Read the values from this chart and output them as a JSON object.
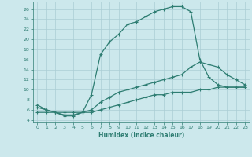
{
  "xlabel": "Humidex (Indice chaleur)",
  "bg_color": "#cce8ec",
  "grid_color": "#aacdd4",
  "line_color": "#2e7d72",
  "xlim": [
    -0.5,
    23.5
  ],
  "ylim": [
    3.5,
    27.5
  ],
  "xticks": [
    0,
    1,
    2,
    3,
    4,
    5,
    6,
    7,
    8,
    9,
    10,
    11,
    12,
    13,
    14,
    15,
    16,
    17,
    18,
    19,
    20,
    21,
    22,
    23
  ],
  "yticks": [
    4,
    6,
    8,
    10,
    12,
    14,
    16,
    18,
    20,
    22,
    24,
    26
  ],
  "line1_x": [
    0,
    1,
    2,
    3,
    4,
    5,
    6,
    7,
    8,
    9,
    10,
    11,
    12,
    13,
    14,
    15,
    16,
    17,
    18,
    19,
    20,
    21,
    22,
    23
  ],
  "line1_y": [
    7.0,
    6.0,
    5.5,
    4.8,
    4.8,
    5.5,
    9.0,
    17.0,
    19.5,
    21.0,
    23.0,
    23.5,
    24.5,
    25.5,
    26.0,
    26.5,
    26.5,
    25.5,
    16.0,
    12.5,
    11.0,
    10.5,
    10.5,
    10.5
  ],
  "line2_x": [
    0,
    1,
    2,
    3,
    4,
    5,
    6,
    7,
    8,
    9,
    10,
    11,
    12,
    13,
    14,
    15,
    16,
    17,
    18,
    19,
    20,
    21,
    22,
    23
  ],
  "line2_y": [
    6.5,
    6.0,
    5.5,
    5.0,
    5.0,
    5.5,
    6.0,
    7.5,
    8.5,
    9.5,
    10.0,
    10.5,
    11.0,
    11.5,
    12.0,
    12.5,
    13.0,
    14.5,
    15.5,
    15.0,
    14.5,
    13.0,
    12.0,
    11.0
  ],
  "line3_x": [
    0,
    1,
    2,
    3,
    4,
    5,
    6,
    7,
    8,
    9,
    10,
    11,
    12,
    13,
    14,
    15,
    16,
    17,
    18,
    19,
    20,
    21,
    22,
    23
  ],
  "line3_y": [
    5.5,
    5.5,
    5.5,
    5.5,
    5.5,
    5.5,
    5.5,
    6.0,
    6.5,
    7.0,
    7.5,
    8.0,
    8.5,
    9.0,
    9.0,
    9.5,
    9.5,
    9.5,
    10.0,
    10.0,
    10.5,
    10.5,
    10.5,
    10.5
  ]
}
